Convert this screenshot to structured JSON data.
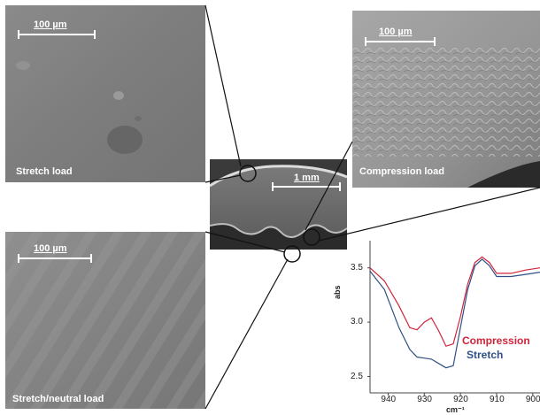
{
  "panels": {
    "stretch": {
      "scale_label": "100 µm",
      "caption": "Stretch load"
    },
    "compression": {
      "scale_label": "100 µm",
      "caption": "Compression load"
    },
    "neutral": {
      "scale_label": "100 µm",
      "caption": "Stretch/neutral load"
    },
    "center": {
      "scale_label": "1 mm"
    }
  },
  "colors": {
    "compression": "#d0243a",
    "stretch": "#2f4f86"
  },
  "chart_data": {
    "type": "line",
    "xlabel": "cm⁻¹",
    "ylabel": "abs",
    "xlim": [
      945,
      898
    ],
    "ylim": [
      2.35,
      3.75
    ],
    "x_ticks": [
      "940",
      "930",
      "920",
      "910",
      "900"
    ],
    "y_ticks": [
      "3.5",
      "3.0",
      "2.5"
    ],
    "x": [
      945,
      941,
      937,
      934,
      932,
      930,
      928,
      926,
      924,
      922,
      920,
      918,
      916,
      914,
      912,
      910,
      906,
      902,
      898
    ],
    "series": [
      {
        "name": "Compression",
        "values": [
          3.5,
          3.38,
          3.15,
          2.95,
          2.93,
          3.0,
          3.04,
          2.92,
          2.78,
          2.8,
          3.05,
          3.35,
          3.55,
          3.6,
          3.55,
          3.45,
          3.45,
          3.48,
          3.5
        ]
      },
      {
        "name": "Stretch",
        "values": [
          3.47,
          3.3,
          2.95,
          2.75,
          2.68,
          2.67,
          2.66,
          2.62,
          2.58,
          2.6,
          2.95,
          3.3,
          3.52,
          3.58,
          3.52,
          3.42,
          3.42,
          3.44,
          3.46
        ]
      }
    ]
  }
}
